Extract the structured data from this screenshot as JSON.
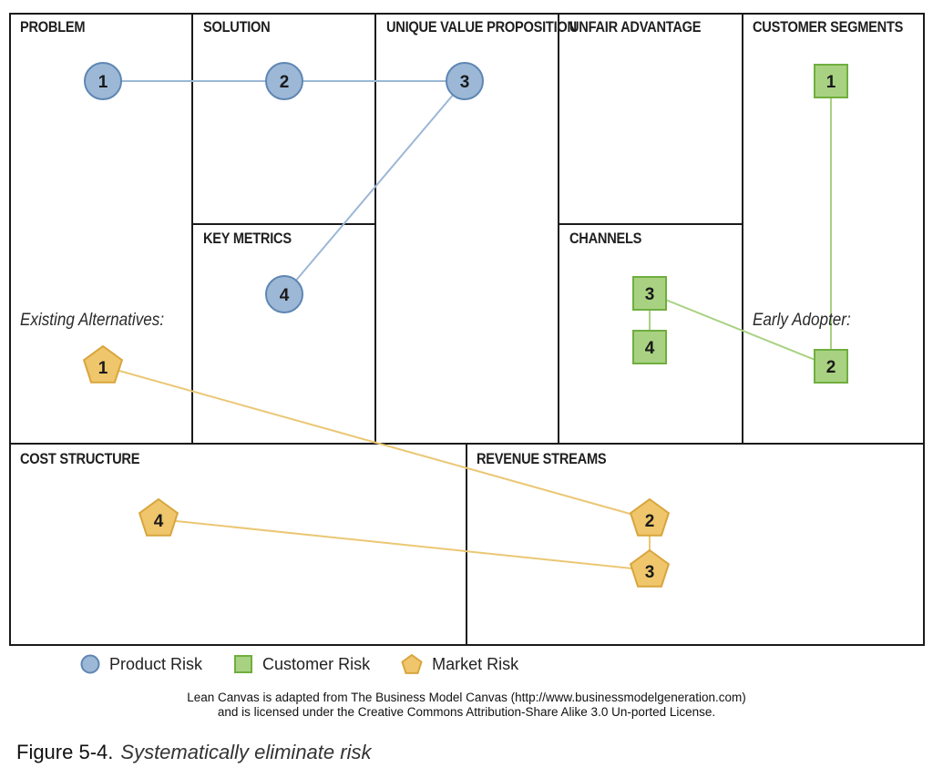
{
  "boxes": {
    "problem": "PROBLEM",
    "solution": "SOLUTION",
    "uvp": "UNIQUE VALUE PROPOSITION",
    "unfair_advantage": "UNFAIR ADVANTAGE",
    "customer_segments": "CUSTOMER SEGMENTS",
    "key_metrics": "KEY METRICS",
    "channels": "CHANNELS",
    "cost_structure": "COST STRUCTURE",
    "revenue_streams": "REVENUE STREAMS"
  },
  "notes": {
    "existing_alternatives": "Existing Alternatives:",
    "early_adopter": "Early Adopter:"
  },
  "markers": {
    "product": [
      "1",
      "2",
      "3",
      "4"
    ],
    "customer": [
      "1",
      "2",
      "3",
      "4"
    ],
    "market": [
      "1",
      "2",
      "3",
      "4"
    ]
  },
  "legend": {
    "product": "Product Risk",
    "customer": "Customer Risk",
    "market": "Market Risk"
  },
  "colors": {
    "product_fill": "#9cb8d6",
    "product_stroke": "#5e86b3",
    "product_line": "#9cb8d6",
    "customer_fill": "#a8d282",
    "customer_stroke": "#6fae3f",
    "customer_line": "#a8d282",
    "market_fill": "#efc66c",
    "market_stroke": "#d8a53c",
    "market_line": "#ebc774"
  },
  "footnote": {
    "line1": "Lean Canvas is adapted from The Business Model Canvas (http://www.businessmodelgeneration.com)",
    "line2": "and is licensed under the Creative Commons Attribution-Share Alike 3.0 Un-ported License."
  },
  "caption": {
    "label": "Figure 5-4.",
    "title": "Systematically eliminate risk"
  }
}
